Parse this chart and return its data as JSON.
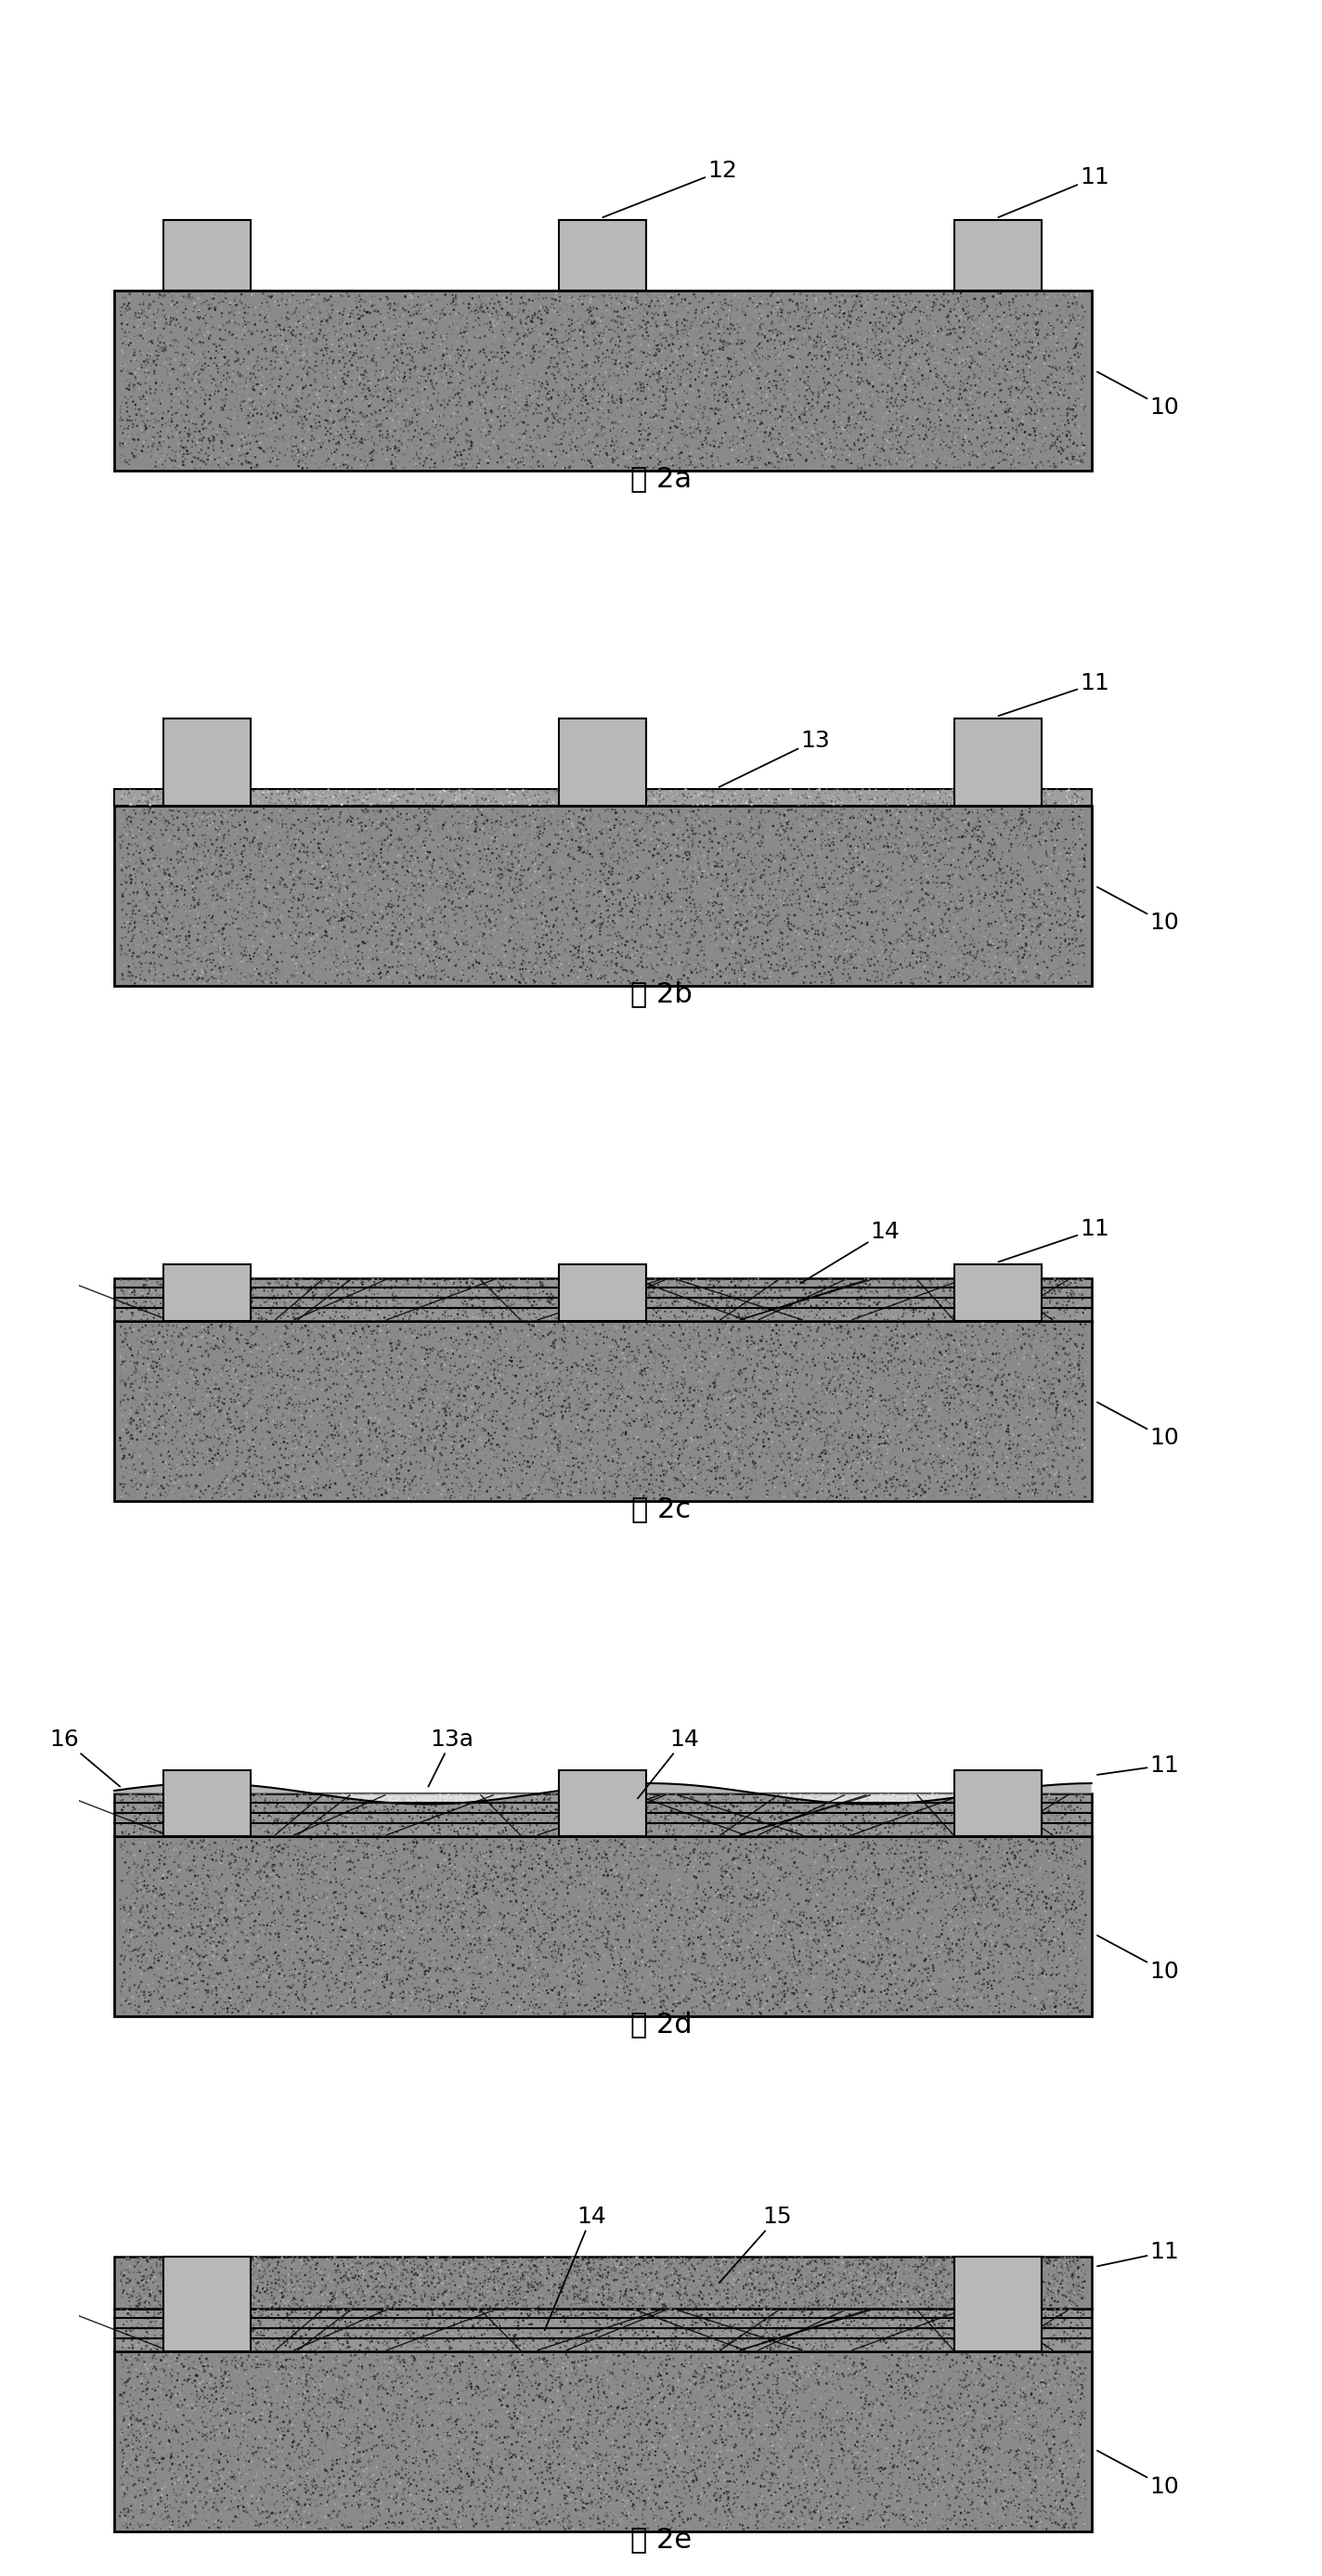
{
  "fig_width": 14.24,
  "fig_height": 27.75,
  "n_panels": 5,
  "panel_labels": [
    "图 2a",
    "图 2b",
    "图 2c",
    "图 2d",
    "图 2e"
  ],
  "substrate_color": [
    0.62,
    0.62,
    0.62
  ],
  "pillar_color": [
    0.72,
    0.72,
    0.72
  ],
  "epi_color": [
    0.68,
    0.68,
    0.68
  ],
  "fill_color": [
    0.7,
    0.7,
    0.7
  ],
  "annotation_fontsize": 18,
  "label_fontsize": 22
}
